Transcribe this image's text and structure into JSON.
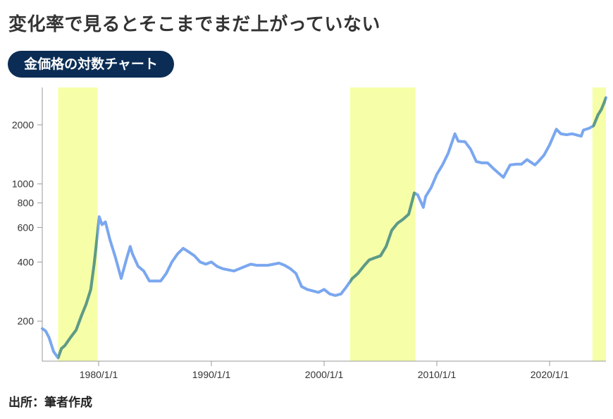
{
  "headline": "変化率で見るとそこまでまだ上がっていない",
  "subtitle": "金価格の対数チャート",
  "source": "出所：筆者作成",
  "colors": {
    "line": "#7aa7ef",
    "line_highlight": "#5f9b84",
    "band": "#f6ffa8",
    "pill_bg": "#0b2d55"
  },
  "chart_data": {
    "type": "line",
    "title": "",
    "xlabel": "",
    "ylabel": "",
    "y_scale": "log",
    "ylim": [
      125,
      3100
    ],
    "xlim": [
      1975.0,
      2025.0
    ],
    "y_ticks": [
      {
        "value": 200,
        "label": "200"
      },
      {
        "value": 400,
        "label": "400"
      },
      {
        "value": 600,
        "label": "600"
      },
      {
        "value": 800,
        "label": "800"
      },
      {
        "value": 1000,
        "label": "1000"
      },
      {
        "value": 2000,
        "label": "2000"
      }
    ],
    "x_ticks": [
      {
        "value": 1980.0,
        "label": "1980/1/1"
      },
      {
        "value": 1990.0,
        "label": "1990/1/1"
      },
      {
        "value": 2000.0,
        "label": "2000/1/1"
      },
      {
        "value": 2010.0,
        "label": "2010/1/1"
      },
      {
        "value": 2020.0,
        "label": "2020/1/1"
      }
    ],
    "grid": false,
    "highlight_periods": [
      [
        1976.4,
        1979.9
      ],
      [
        2002.3,
        2008.1
      ],
      [
        2023.8,
        2025.0
      ]
    ],
    "series": [
      {
        "x": [
          1975.0,
          1975.3,
          1975.6,
          1976.0,
          1976.4,
          1976.7,
          1977.0,
          1977.5,
          1978.0,
          1978.5,
          1978.9,
          1979.3,
          1979.6,
          1979.9,
          1980.05,
          1980.3,
          1980.6,
          1981.0,
          1981.5,
          1982.0,
          1982.5,
          1982.8,
          1983.0,
          1983.5,
          1984.0,
          1984.5,
          1985.0,
          1985.5,
          1986.0,
          1986.5,
          1987.0,
          1987.5,
          1988.0,
          1988.5,
          1989.0,
          1989.5,
          1990.0,
          1990.5,
          1991.0,
          1992.0,
          1993.0,
          1993.5,
          1994.0,
          1995.0,
          1996.0,
          1996.5,
          1997.0,
          1997.5,
          1998.0,
          1998.5,
          1999.0,
          1999.5,
          2000.0,
          2000.5,
          2001.0,
          2001.5,
          2002.0,
          2002.5,
          2003.0,
          2003.5,
          2004.0,
          2004.5,
          2005.0,
          2005.5,
          2006.0,
          2006.5,
          2007.0,
          2007.5,
          2008.0,
          2008.3,
          2008.8,
          2009.0,
          2009.5,
          2010.0,
          2010.5,
          2011.0,
          2011.6,
          2011.9,
          2012.5,
          2013.0,
          2013.5,
          2014.0,
          2014.5,
          2015.0,
          2015.9,
          2016.5,
          2017.0,
          2017.5,
          2018.0,
          2018.7,
          2019.0,
          2019.5,
          2020.0,
          2020.6,
          2021.0,
          2021.5,
          2022.0,
          2022.8,
          2023.0,
          2023.5,
          2023.9,
          2024.3,
          2024.6,
          2024.9,
          2025.0
        ],
        "values": [
          183,
          178,
          165,
          140,
          130,
          145,
          150,
          165,
          180,
          215,
          245,
          290,
          390,
          560,
          680,
          620,
          640,
          520,
          420,
          330,
          420,
          480,
          440,
          380,
          360,
          320,
          320,
          320,
          350,
          400,
          440,
          470,
          450,
          430,
          400,
          390,
          400,
          380,
          370,
          360,
          380,
          390,
          385,
          385,
          395,
          385,
          370,
          350,
          300,
          290,
          285,
          280,
          290,
          275,
          270,
          275,
          300,
          330,
          350,
          380,
          410,
          420,
          430,
          480,
          580,
          630,
          660,
          700,
          900,
          880,
          760,
          860,
          960,
          1120,
          1250,
          1430,
          1800,
          1650,
          1640,
          1500,
          1300,
          1280,
          1280,
          1200,
          1080,
          1250,
          1260,
          1260,
          1330,
          1250,
          1300,
          1400,
          1580,
          1900,
          1800,
          1780,
          1800,
          1750,
          1880,
          1920,
          1980,
          2250,
          2400,
          2650,
          2750
        ]
      }
    ]
  }
}
